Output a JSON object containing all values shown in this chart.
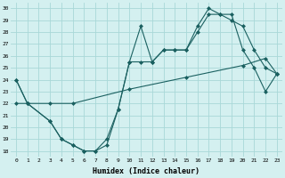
{
  "xlabel": "Humidex (Indice chaleur)",
  "bg_color": "#d4f0f0",
  "grid_color": "#a8d8d8",
  "line_color": "#1a6060",
  "xlim": [
    -0.5,
    23.5
  ],
  "ylim": [
    17.5,
    30.5
  ],
  "xticks": [
    0,
    1,
    2,
    3,
    4,
    5,
    6,
    7,
    8,
    9,
    10,
    11,
    12,
    13,
    14,
    15,
    16,
    17,
    18,
    19,
    20,
    21,
    22,
    23
  ],
  "yticks": [
    18,
    19,
    20,
    21,
    22,
    23,
    24,
    25,
    26,
    27,
    28,
    29,
    30
  ],
  "series1": {
    "x": [
      0,
      1,
      3,
      4,
      5,
      6,
      7,
      8,
      9,
      10,
      11,
      12,
      13,
      14,
      15,
      16,
      17,
      18,
      19,
      20,
      21,
      22,
      23
    ],
    "y": [
      24,
      22,
      20.5,
      19,
      18.5,
      18,
      18,
      18.5,
      21.5,
      25.5,
      28.5,
      25.5,
      26.5,
      26.5,
      26.5,
      28.5,
      30,
      29.5,
      29.5,
      26.5,
      25,
      23,
      24.5
    ]
  },
  "series2": {
    "x": [
      0,
      1,
      3,
      4,
      5,
      6,
      7,
      8,
      9,
      10,
      11,
      12,
      13,
      14,
      15,
      16,
      17,
      18,
      19,
      20,
      21,
      22,
      23
    ],
    "y": [
      24,
      22,
      20.5,
      19,
      18.5,
      18,
      18,
      19,
      21.5,
      25.5,
      25.5,
      25.5,
      26.5,
      26.5,
      26.5,
      28,
      29.5,
      29.5,
      29,
      28.5,
      26.5,
      25,
      24.5
    ]
  },
  "series3": {
    "x": [
      0,
      1,
      3,
      5,
      10,
      15,
      20,
      22,
      23
    ],
    "y": [
      22,
      22,
      22,
      22,
      23.2,
      24.2,
      25.2,
      25.8,
      24.5
    ]
  }
}
